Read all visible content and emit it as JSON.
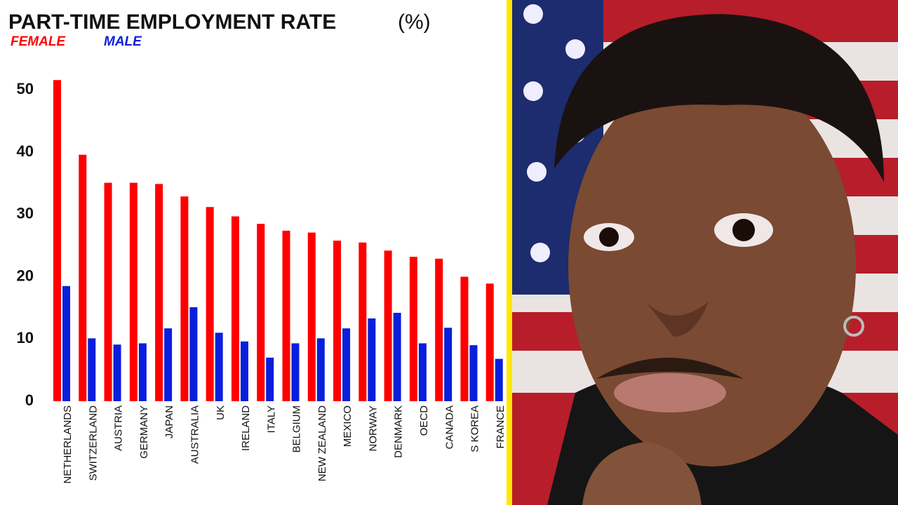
{
  "chart_data": {
    "type": "bar",
    "title": "PART-TIME EMPLOYMENT RATE",
    "unit_label": "(%)",
    "categories": [
      "NETHERLANDS",
      "SWITZERLAND",
      "AUSTRIA",
      "GERMANY",
      "JAPAN",
      "AUSTRALIA",
      "UK",
      "IRELAND",
      "ITALY",
      "BELGIUM",
      "NEW ZEALAND",
      "MEXICO",
      "NORWAY",
      "DENMARK",
      "OECD",
      "CANADA",
      "S KOREA",
      "FRANCE"
    ],
    "series": [
      {
        "name": "FEMALE",
        "color": "#ff0000",
        "values": [
          51.6,
          39.6,
          35.1,
          35.1,
          34.9,
          32.9,
          31.2,
          29.7,
          28.5,
          27.4,
          27.1,
          25.8,
          25.5,
          24.2,
          23.2,
          22.9,
          20.0,
          18.9
        ]
      },
      {
        "name": "MALE",
        "color": "#0a1fdc",
        "values": [
          18.5,
          10.1,
          9.1,
          9.3,
          11.7,
          15.1,
          11.0,
          9.6,
          7.0,
          9.3,
          10.1,
          11.7,
          13.3,
          14.2,
          9.3,
          11.8,
          9.0,
          6.8
        ]
      }
    ],
    "ylim": [
      0,
      55
    ],
    "yticks": [
      0,
      10,
      20,
      30,
      40,
      50
    ],
    "grid": false
  }
}
